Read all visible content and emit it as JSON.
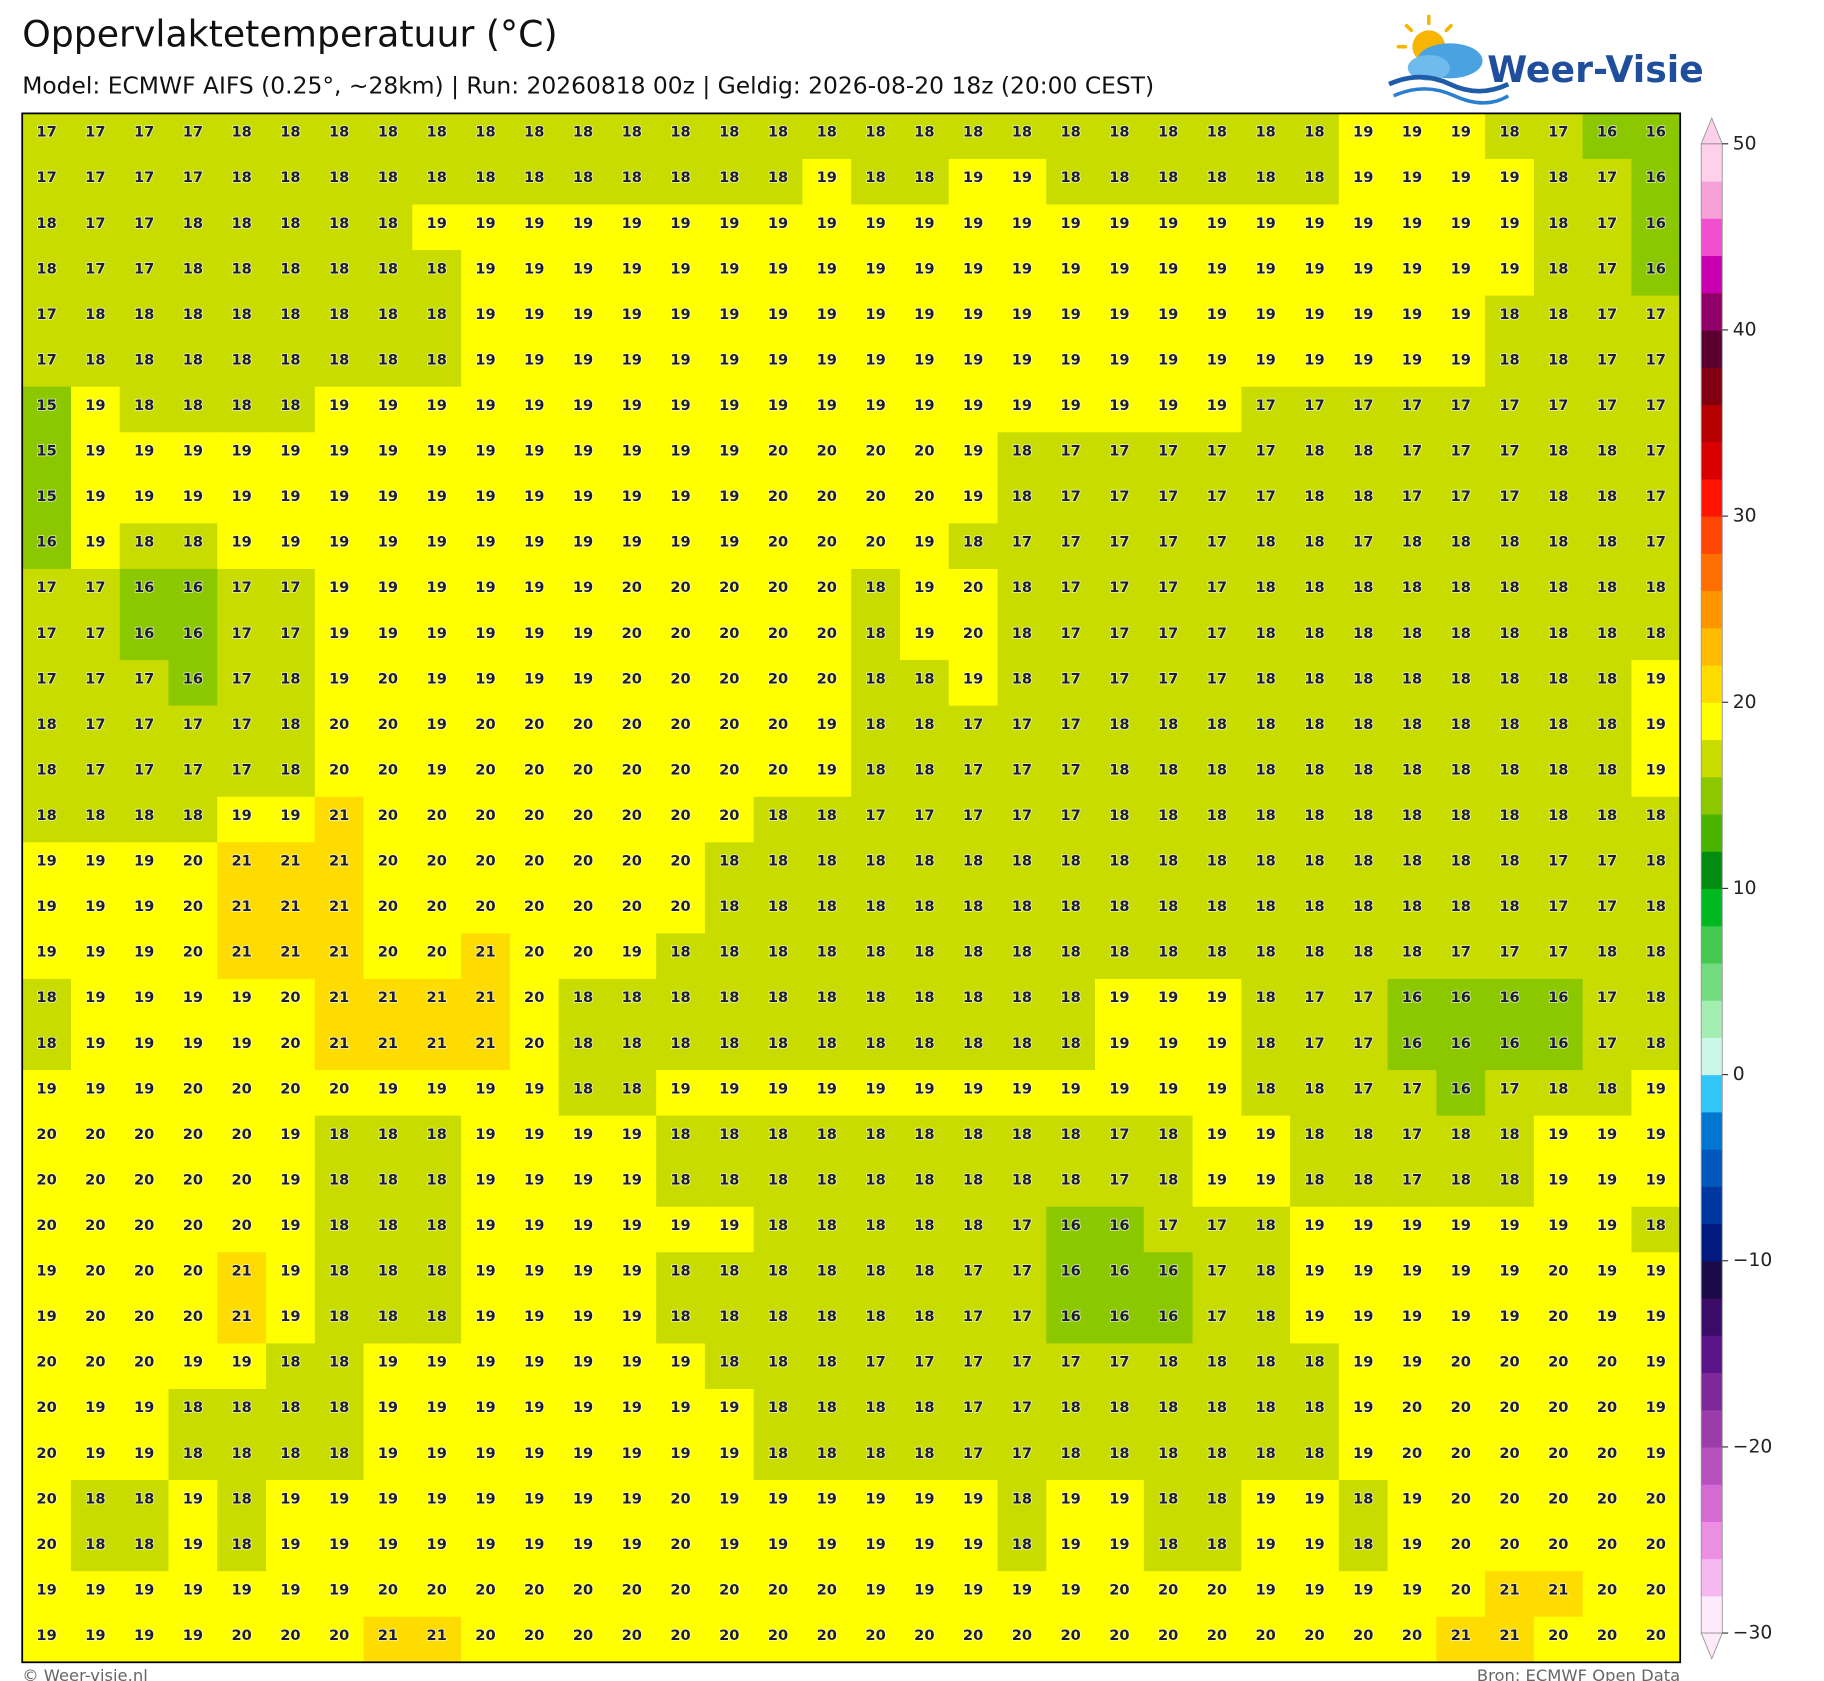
{
  "header": {
    "title": "Oppervlaktetemperatuur (°C)",
    "subtitle": "Model: ECMWF AIFS (0.25°, ~28km)  |  Run: 20260818 00z  |  Geldig: 2026-08-20 18z (20:00 CEST)",
    "logo_text": "Weer-Visie"
  },
  "map": {
    "values": [
      [
        17,
        17,
        17,
        17,
        18,
        18,
        18,
        18,
        18,
        18,
        18,
        18,
        18,
        18,
        18,
        18,
        18,
        18,
        18,
        18,
        18,
        18,
        18,
        18,
        18,
        18,
        18,
        19,
        19,
        19,
        18,
        17,
        16,
        16
      ],
      [
        17,
        17,
        17,
        17,
        18,
        18,
        18,
        18,
        18,
        18,
        18,
        18,
        18,
        18,
        18,
        18,
        19,
        18,
        18,
        19,
        19,
        18,
        18,
        18,
        18,
        18,
        18,
        19,
        19,
        19,
        19,
        18,
        17,
        16
      ],
      [
        18,
        17,
        17,
        18,
        18,
        18,
        18,
        18,
        19,
        19,
        19,
        19,
        19,
        19,
        19,
        19,
        19,
        19,
        19,
        19,
        19,
        19,
        19,
        19,
        19,
        19,
        19,
        19,
        19,
        19,
        19,
        18,
        17,
        16
      ],
      [
        18,
        17,
        17,
        18,
        18,
        18,
        18,
        18,
        18,
        19,
        19,
        19,
        19,
        19,
        19,
        19,
        19,
        19,
        19,
        19,
        19,
        19,
        19,
        19,
        19,
        19,
        19,
        19,
        19,
        19,
        19,
        18,
        17,
        16
      ],
      [
        17,
        18,
        18,
        18,
        18,
        18,
        18,
        18,
        18,
        19,
        19,
        19,
        19,
        19,
        19,
        19,
        19,
        19,
        19,
        19,
        19,
        19,
        19,
        19,
        19,
        19,
        19,
        19,
        19,
        19,
        18,
        18,
        17,
        17
      ],
      [
        17,
        18,
        18,
        18,
        18,
        18,
        18,
        18,
        18,
        19,
        19,
        19,
        19,
        19,
        19,
        19,
        19,
        19,
        19,
        19,
        19,
        19,
        19,
        19,
        19,
        19,
        19,
        19,
        19,
        19,
        18,
        18,
        17,
        17
      ],
      [
        15,
        19,
        18,
        18,
        18,
        18,
        19,
        19,
        19,
        19,
        19,
        19,
        19,
        19,
        19,
        19,
        19,
        19,
        19,
        19,
        19,
        19,
        19,
        19,
        19,
        17,
        17,
        17,
        17,
        17,
        17,
        17,
        17,
        17
      ],
      [
        15,
        19,
        19,
        19,
        19,
        19,
        19,
        19,
        19,
        19,
        19,
        19,
        19,
        19,
        19,
        20,
        20,
        20,
        20,
        19,
        18,
        17,
        17,
        17,
        17,
        17,
        18,
        18,
        17,
        17,
        17,
        18,
        18,
        17
      ],
      [
        15,
        19,
        19,
        19,
        19,
        19,
        19,
        19,
        19,
        19,
        19,
        19,
        19,
        19,
        19,
        20,
        20,
        20,
        20,
        19,
        18,
        17,
        17,
        17,
        17,
        17,
        18,
        18,
        17,
        17,
        17,
        18,
        18,
        17
      ],
      [
        16,
        19,
        18,
        18,
        19,
        19,
        19,
        19,
        19,
        19,
        19,
        19,
        19,
        19,
        19,
        20,
        20,
        20,
        19,
        18,
        17,
        17,
        17,
        17,
        17,
        18,
        18,
        17,
        18,
        18,
        18,
        18,
        18,
        17
      ],
      [
        17,
        17,
        16,
        16,
        17,
        17,
        19,
        19,
        19,
        19,
        19,
        19,
        20,
        20,
        20,
        20,
        20,
        18,
        19,
        20,
        18,
        17,
        17,
        17,
        17,
        18,
        18,
        18,
        18,
        18,
        18,
        18,
        18,
        18
      ],
      [
        17,
        17,
        16,
        16,
        17,
        17,
        19,
        19,
        19,
        19,
        19,
        19,
        20,
        20,
        20,
        20,
        20,
        18,
        19,
        20,
        18,
        17,
        17,
        17,
        17,
        18,
        18,
        18,
        18,
        18,
        18,
        18,
        18,
        18
      ],
      [
        17,
        17,
        17,
        16,
        17,
        18,
        19,
        20,
        19,
        19,
        19,
        19,
        20,
        20,
        20,
        20,
        20,
        18,
        18,
        19,
        18,
        17,
        17,
        17,
        17,
        18,
        18,
        18,
        18,
        18,
        18,
        18,
        18,
        19
      ],
      [
        18,
        17,
        17,
        17,
        17,
        18,
        20,
        20,
        19,
        20,
        20,
        20,
        20,
        20,
        20,
        20,
        19,
        18,
        18,
        17,
        17,
        17,
        18,
        18,
        18,
        18,
        18,
        18,
        18,
        18,
        18,
        18,
        18,
        19
      ],
      [
        18,
        17,
        17,
        17,
        17,
        18,
        20,
        20,
        19,
        20,
        20,
        20,
        20,
        20,
        20,
        20,
        19,
        18,
        18,
        17,
        17,
        17,
        18,
        18,
        18,
        18,
        18,
        18,
        18,
        18,
        18,
        18,
        18,
        19
      ],
      [
        18,
        18,
        18,
        18,
        19,
        19,
        21,
        20,
        20,
        20,
        20,
        20,
        20,
        20,
        20,
        18,
        18,
        17,
        17,
        17,
        17,
        17,
        18,
        18,
        18,
        18,
        18,
        18,
        18,
        18,
        18,
        18,
        18,
        18
      ],
      [
        19,
        19,
        19,
        20,
        21,
        21,
        21,
        20,
        20,
        20,
        20,
        20,
        20,
        20,
        18,
        18,
        18,
        18,
        18,
        18,
        18,
        18,
        18,
        18,
        18,
        18,
        18,
        18,
        18,
        18,
        18,
        17,
        17,
        18
      ],
      [
        19,
        19,
        19,
        20,
        21,
        21,
        21,
        20,
        20,
        20,
        20,
        20,
        20,
        20,
        18,
        18,
        18,
        18,
        18,
        18,
        18,
        18,
        18,
        18,
        18,
        18,
        18,
        18,
        18,
        18,
        18,
        17,
        17,
        18
      ],
      [
        19,
        19,
        19,
        20,
        21,
        21,
        21,
        20,
        20,
        21,
        20,
        20,
        19,
        18,
        18,
        18,
        18,
        18,
        18,
        18,
        18,
        18,
        18,
        18,
        18,
        18,
        18,
        18,
        18,
        17,
        17,
        17,
        18,
        18
      ],
      [
        18,
        19,
        19,
        19,
        19,
        20,
        21,
        21,
        21,
        21,
        20,
        18,
        18,
        18,
        18,
        18,
        18,
        18,
        18,
        18,
        18,
        18,
        19,
        19,
        19,
        18,
        17,
        17,
        16,
        16,
        16,
        16,
        17,
        18
      ],
      [
        18,
        19,
        19,
        19,
        19,
        20,
        21,
        21,
        21,
        21,
        20,
        18,
        18,
        18,
        18,
        18,
        18,
        18,
        18,
        18,
        18,
        18,
        19,
        19,
        19,
        18,
        17,
        17,
        16,
        16,
        16,
        16,
        17,
        18
      ],
      [
        19,
        19,
        19,
        20,
        20,
        20,
        20,
        19,
        19,
        19,
        19,
        18,
        18,
        19,
        19,
        19,
        19,
        19,
        19,
        19,
        19,
        19,
        19,
        19,
        19,
        18,
        18,
        17,
        17,
        16,
        17,
        18,
        18,
        19
      ],
      [
        20,
        20,
        20,
        20,
        20,
        19,
        18,
        18,
        18,
        19,
        19,
        19,
        19,
        18,
        18,
        18,
        18,
        18,
        18,
        18,
        18,
        18,
        17,
        18,
        19,
        19,
        18,
        18,
        17,
        18,
        18,
        19,
        19,
        19
      ],
      [
        20,
        20,
        20,
        20,
        20,
        19,
        18,
        18,
        18,
        19,
        19,
        19,
        19,
        18,
        18,
        18,
        18,
        18,
        18,
        18,
        18,
        18,
        17,
        18,
        19,
        19,
        18,
        18,
        17,
        18,
        18,
        19,
        19,
        19
      ],
      [
        20,
        20,
        20,
        20,
        20,
        19,
        18,
        18,
        18,
        19,
        19,
        19,
        19,
        19,
        19,
        18,
        18,
        18,
        18,
        18,
        17,
        16,
        16,
        17,
        17,
        18,
        19,
        19,
        19,
        19,
        19,
        19,
        19,
        18
      ],
      [
        19,
        20,
        20,
        20,
        21,
        19,
        18,
        18,
        18,
        19,
        19,
        19,
        19,
        18,
        18,
        18,
        18,
        18,
        18,
        17,
        17,
        16,
        16,
        16,
        17,
        18,
        19,
        19,
        19,
        19,
        19,
        20,
        19,
        19
      ],
      [
        19,
        20,
        20,
        20,
        21,
        19,
        18,
        18,
        18,
        19,
        19,
        19,
        19,
        18,
        18,
        18,
        18,
        18,
        18,
        17,
        17,
        16,
        16,
        16,
        17,
        18,
        19,
        19,
        19,
        19,
        19,
        20,
        19,
        19
      ],
      [
        20,
        20,
        20,
        19,
        19,
        18,
        18,
        19,
        19,
        19,
        19,
        19,
        19,
        19,
        18,
        18,
        18,
        17,
        17,
        17,
        17,
        17,
        17,
        18,
        18,
        18,
        18,
        19,
        19,
        20,
        20,
        20,
        20,
        19
      ],
      [
        20,
        19,
        19,
        18,
        18,
        18,
        18,
        19,
        19,
        19,
        19,
        19,
        19,
        19,
        19,
        18,
        18,
        18,
        18,
        17,
        17,
        18,
        18,
        18,
        18,
        18,
        18,
        19,
        20,
        20,
        20,
        20,
        20,
        19
      ],
      [
        20,
        19,
        19,
        18,
        18,
        18,
        18,
        19,
        19,
        19,
        19,
        19,
        19,
        19,
        19,
        18,
        18,
        18,
        18,
        17,
        17,
        18,
        18,
        18,
        18,
        18,
        18,
        19,
        20,
        20,
        20,
        20,
        20,
        19
      ],
      [
        20,
        18,
        18,
        19,
        18,
        19,
        19,
        19,
        19,
        19,
        19,
        19,
        19,
        20,
        19,
        19,
        19,
        19,
        19,
        19,
        18,
        19,
        19,
        18,
        18,
        19,
        19,
        18,
        19,
        20,
        20,
        20,
        20,
        20
      ],
      [
        20,
        18,
        18,
        19,
        18,
        19,
        19,
        19,
        19,
        19,
        19,
        19,
        19,
        20,
        19,
        19,
        19,
        19,
        19,
        19,
        18,
        19,
        19,
        18,
        18,
        19,
        19,
        18,
        19,
        20,
        20,
        20,
        20,
        20
      ],
      [
        19,
        19,
        19,
        19,
        19,
        19,
        19,
        20,
        20,
        20,
        20,
        20,
        20,
        20,
        20,
        20,
        20,
        19,
        19,
        19,
        19,
        19,
        20,
        20,
        20,
        19,
        19,
        19,
        19,
        20,
        21,
        21,
        20,
        20
      ],
      [
        19,
        19,
        19,
        19,
        20,
        20,
        20,
        21,
        21,
        20,
        20,
        20,
        20,
        20,
        20,
        20,
        20,
        20,
        20,
        20,
        20,
        20,
        20,
        20,
        20,
        20,
        20,
        20,
        20,
        21,
        21,
        20,
        20,
        20
      ]
    ],
    "colorbar": {
      "lim": [
        -30,
        50
      ],
      "ticks": [
        50,
        40,
        30,
        20,
        10,
        0,
        {
          "value": -10,
          "label": "−10"
        },
        {
          "value": -20,
          "label": "−20"
        },
        {
          "value": -30,
          "label": "−30"
        }
      ],
      "colors": [
        "#fdebfa",
        "#f6b8f0",
        "#ea8fe2",
        "#d56ad3",
        "#b650bc",
        "#9a3caa",
        "#7c2898",
        "#5a1488",
        "#3a0c68",
        "#1a0a48",
        "#001a80",
        "#0036a0",
        "#0058bc",
        "#0076d0",
        "#33c6f8",
        "#ccf7e8",
        "#a4eeb2",
        "#74dc80",
        "#44c850",
        "#00b820",
        "#008c10",
        "#48b400",
        "#8cc800",
        "#c8dc00",
        "#ffff00",
        "#ffdc00",
        "#ffbc00",
        "#ff9600",
        "#ff6e00",
        "#ff4600",
        "#ff1400",
        "#d80000",
        "#b40000",
        "#820010",
        "#5a0030",
        "#900068",
        "#c800b0",
        "#f050d0",
        "#f8a0d8",
        "#ffd0ec"
      ]
    }
  },
  "footer": {
    "copyright": "© Weer-visie.nl",
    "source": "Bron: ECMWF Open Data"
  }
}
